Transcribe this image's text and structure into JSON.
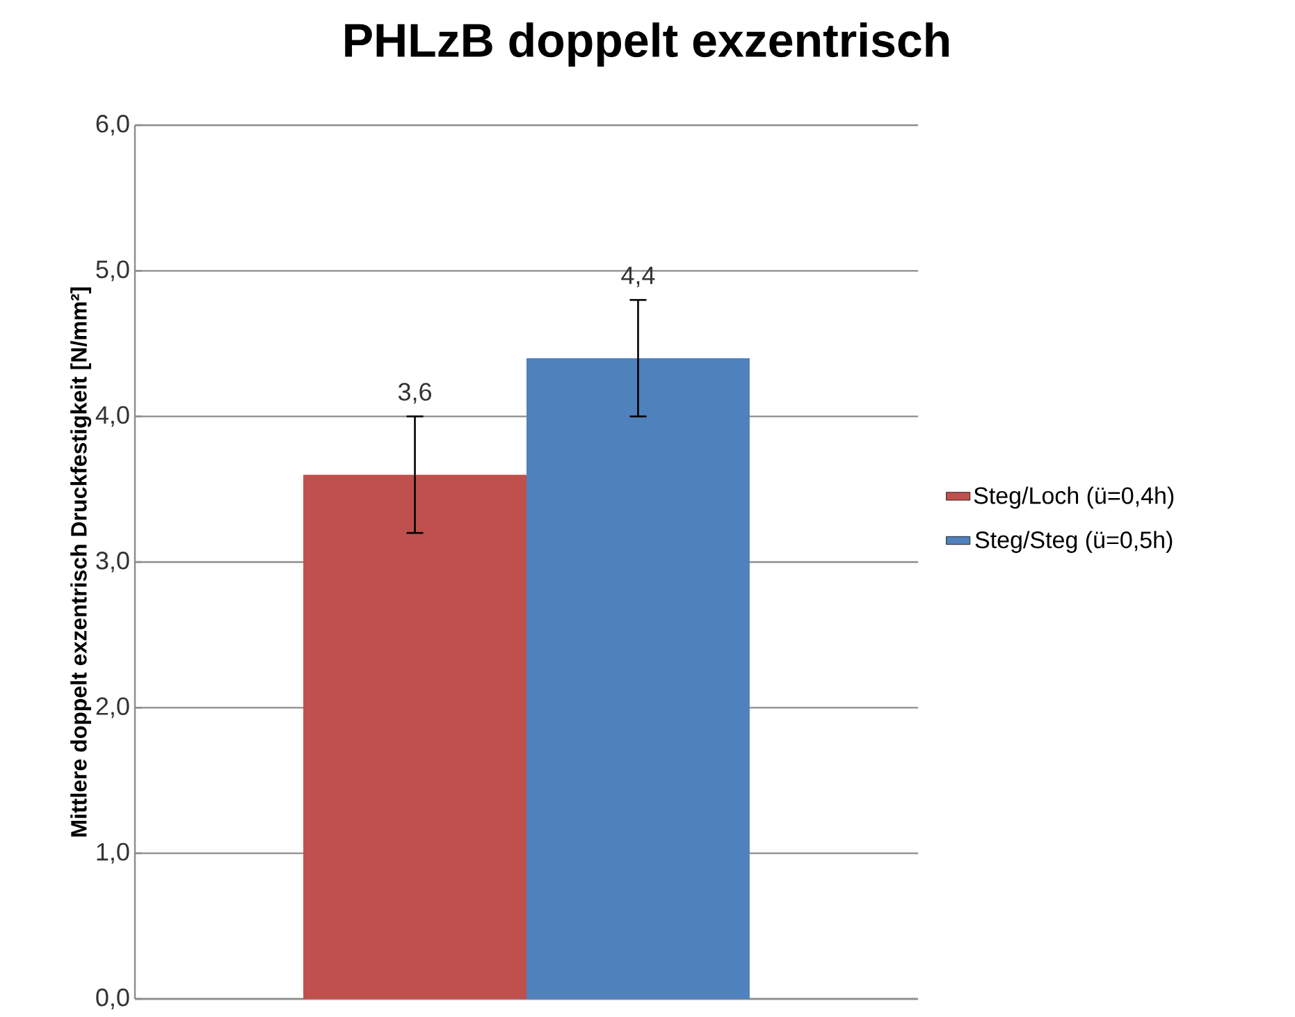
{
  "chart_data": {
    "type": "bar",
    "title": "PHLzB doppelt exzentrisch",
    "ylabel": "Mittlere doppelt exzentrisch Druckfestigkeit [N/mm²]",
    "categories": [
      null
    ],
    "series": [
      {
        "name": "Steg/Loch (ü=0,4h)",
        "color": "#c0504d",
        "values": [
          3.6
        ],
        "errors": [
          0.4
        ],
        "value_labels": [
          "3,6"
        ]
      },
      {
        "name": "Steg/Steg (ü=0,5h)",
        "color": "#4f81bd",
        "values": [
          4.4
        ],
        "errors": [
          0.4
        ],
        "value_labels": [
          "4,4"
        ]
      }
    ],
    "ylim": [
      0,
      6
    ],
    "yticks": [
      {
        "value": 0,
        "label": "0,0"
      },
      {
        "value": 1,
        "label": "1,0"
      },
      {
        "value": 2,
        "label": "2,0"
      },
      {
        "value": 3,
        "label": "3,0"
      },
      {
        "value": 4,
        "label": "4,0"
      },
      {
        "value": 5,
        "label": "5,0"
      },
      {
        "value": 6,
        "label": "6,0"
      }
    ],
    "grid": "y",
    "legend": "right"
  }
}
